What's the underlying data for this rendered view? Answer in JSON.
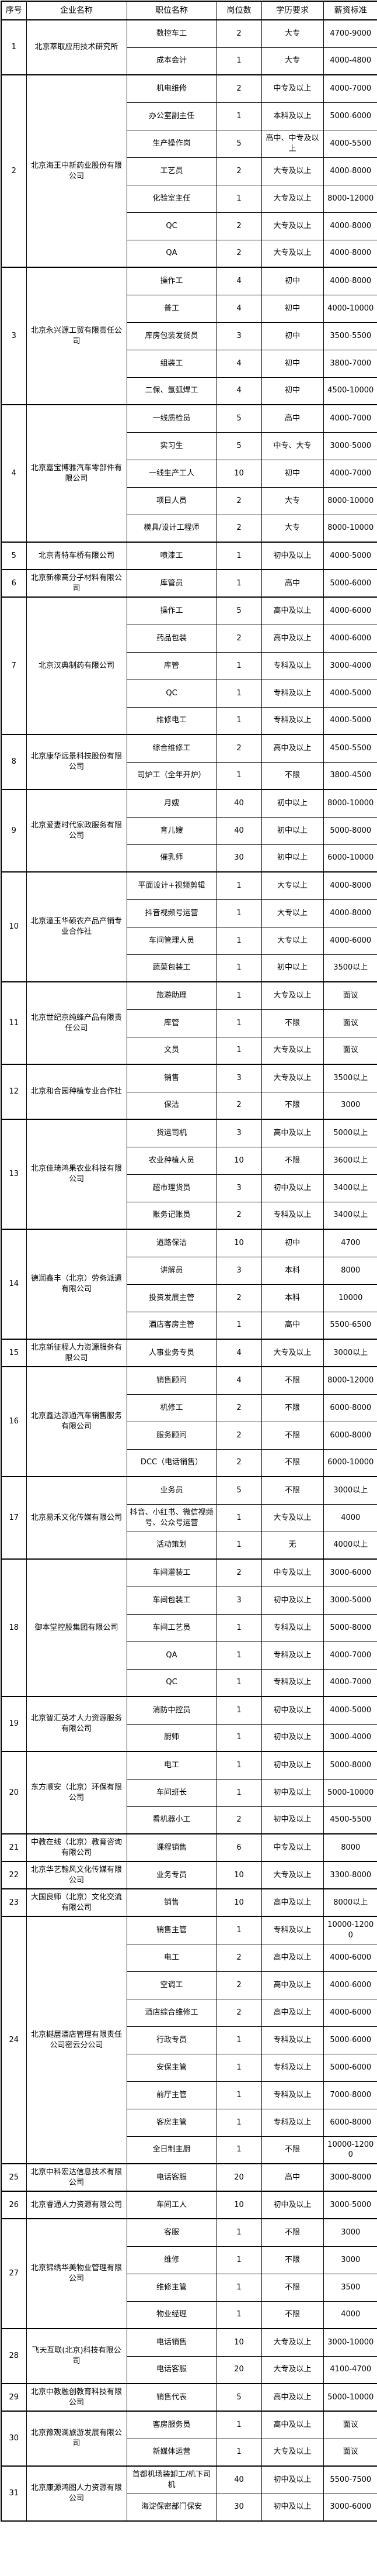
{
  "table": {
    "headers": [
      "序号",
      "企业名称",
      "职位名称",
      "岗位数",
      "学历要求",
      "薪资标准"
    ],
    "companies": [
      {
        "no": "1",
        "name": "北京萃取应用技术研究所",
        "positions": [
          {
            "title": "数控车工",
            "count": "2",
            "education": "大专",
            "salary": "4700-9000"
          },
          {
            "title": "成本会计",
            "count": "1",
            "education": "大专",
            "salary": "4000-4800"
          }
        ]
      },
      {
        "no": "2",
        "name": "北京海王中新药业股份有限公司",
        "positions": [
          {
            "title": "机电维修",
            "count": "2",
            "education": "中专及以上",
            "salary": "4000-7000"
          },
          {
            "title": "办公室副主任",
            "count": "1",
            "education": "本科及以上",
            "salary": "5000-6000"
          },
          {
            "title": "生产操作岗",
            "count": "5",
            "education": "高中、中专及以上",
            "salary": "4000-5500"
          },
          {
            "title": "工艺员",
            "count": "2",
            "education": "大专及以上",
            "salary": "4000-8000"
          },
          {
            "title": "化验室主任",
            "count": "1",
            "education": "大专及以上",
            "salary": "8000-12000"
          },
          {
            "title": "QC",
            "count": "2",
            "education": "大专及以上",
            "salary": "4000-8000"
          },
          {
            "title": "QA",
            "count": "2",
            "education": "大专及以上",
            "salary": "4000-8000"
          }
        ]
      },
      {
        "no": "3",
        "name": "北京永兴源工贸有限责任公司",
        "positions": [
          {
            "title": "操作工",
            "count": "4",
            "education": "初中",
            "salary": "4000-8000"
          },
          {
            "title": "普工",
            "count": "4",
            "education": "初中",
            "salary": "4000-10000"
          },
          {
            "title": "库房包装发货员",
            "count": "3",
            "education": "初中",
            "salary": "3500-5500"
          },
          {
            "title": "组装工",
            "count": "4",
            "education": "初中",
            "salary": "3800-7000"
          },
          {
            "title": "二保、氩弧焊工",
            "count": "4",
            "education": "初中",
            "salary": "4500-10000"
          }
        ]
      },
      {
        "no": "4",
        "name": "北京嘉宝博雅汽车零部件有限公司",
        "positions": [
          {
            "title": "一线质检员",
            "count": "5",
            "education": "高中",
            "salary": "4000-7000"
          },
          {
            "title": "实习生",
            "count": "5",
            "education": "中专、大专",
            "salary": "3000-5000"
          },
          {
            "title": "一线生产工人",
            "count": "10",
            "education": "初中",
            "salary": "4000-7000"
          },
          {
            "title": "项目人员",
            "count": "2",
            "education": "大专",
            "salary": "8000-10000"
          },
          {
            "title": "模具/设计工程师",
            "count": "2",
            "education": "大专",
            "salary": "8000-10000"
          }
        ]
      },
      {
        "no": "5",
        "name": "北京青特车桥有限公司",
        "positions": [
          {
            "title": "喷漆工",
            "count": "1",
            "education": "初中及以上",
            "salary": "4000-5000"
          }
        ]
      },
      {
        "no": "6",
        "name": "北京新橡高分子材料有限公司",
        "positions": [
          {
            "title": "库管员",
            "count": "1",
            "education": "高中",
            "salary": "5000-6000"
          }
        ]
      },
      {
        "no": "7",
        "name": "北京汉典制药有限公司",
        "positions": [
          {
            "title": "操作工",
            "count": "5",
            "education": "高中及以上",
            "salary": "4000-6000"
          },
          {
            "title": "药品包装",
            "count": "2",
            "education": "高中及以上",
            "salary": "4000-6000"
          },
          {
            "title": "库管",
            "count": "1",
            "education": "专科及以上",
            "salary": "3000-4000"
          },
          {
            "title": "QC",
            "count": "1",
            "education": "专科及以上",
            "salary": "4000-5000"
          },
          {
            "title": "维修电工",
            "count": "1",
            "education": "专科及以上",
            "salary": "4000-5000"
          }
        ]
      },
      {
        "no": "8",
        "name": "北京康华远景科技股份有限公司",
        "positions": [
          {
            "title": "综合维修工",
            "count": "2",
            "education": "高中及以上",
            "salary": "4500-5500"
          },
          {
            "title": "司炉工（全年开炉）",
            "count": "1",
            "education": "不限",
            "salary": "3800-4500"
          }
        ]
      },
      {
        "no": "9",
        "name": "北京爱妻时代家政服务有限公司",
        "positions": [
          {
            "title": "月嫂",
            "count": "40",
            "education": "初中以上",
            "salary": "8000-10000"
          },
          {
            "title": "育儿嫂",
            "count": "40",
            "education": "初中以上",
            "salary": "5000-8000"
          },
          {
            "title": "催乳师",
            "count": "30",
            "education": "初中以上",
            "salary": "6000-10000"
          }
        ]
      },
      {
        "no": "10",
        "name": "北京潼玉华硕农产品产销专业合作社",
        "positions": [
          {
            "title": "平面设计+视频剪辑",
            "count": "1",
            "education": "大专以上",
            "salary": "4000-8000"
          },
          {
            "title": "抖音视频号运营",
            "count": "1",
            "education": "大专以上",
            "salary": "4000-8000"
          },
          {
            "title": "车间管理人员",
            "count": "1",
            "education": "大专以上",
            "salary": "4000-6000"
          },
          {
            "title": "蔬菜包装工",
            "count": "1",
            "education": "初中以上",
            "salary": "3500以上"
          }
        ]
      },
      {
        "no": "11",
        "name": "北京世纪京纯蜂产品有限责任公司",
        "positions": [
          {
            "title": "旅游助理",
            "count": "1",
            "education": "大专及以上",
            "salary": "面议"
          },
          {
            "title": "库管",
            "count": "1",
            "education": "不限",
            "salary": "面议"
          },
          {
            "title": "文员",
            "count": "1",
            "education": "大专及以上",
            "salary": "面议"
          }
        ]
      },
      {
        "no": "12",
        "name": "北京和合园种植专业合作社",
        "positions": [
          {
            "title": "销售",
            "count": "3",
            "education": "大专及以上",
            "salary": "3500以上"
          },
          {
            "title": "保洁",
            "count": "2",
            "education": "不限",
            "salary": "3000"
          }
        ]
      },
      {
        "no": "13",
        "name": "北京佳琦鸿果农业科技有限公司",
        "positions": [
          {
            "title": "货运司机",
            "count": "3",
            "education": "高中及以上",
            "salary": "5000以上"
          },
          {
            "title": "农业种植人员",
            "count": "10",
            "education": "不限",
            "salary": "3600以上"
          },
          {
            "title": "超市理货员",
            "count": "3",
            "education": "初中及以上",
            "salary": "3400以上"
          },
          {
            "title": "账务记账员",
            "count": "2",
            "education": "专科及以上",
            "salary": "3400以上"
          }
        ]
      },
      {
        "no": "14",
        "name": "德润鑫丰（北京）劳务派遣有限公司",
        "positions": [
          {
            "title": "道路保洁",
            "count": "10",
            "education": "初中",
            "salary": "4700"
          },
          {
            "title": "讲解员",
            "count": "3",
            "education": "本科",
            "salary": "8000"
          },
          {
            "title": "投资发展主管",
            "count": "2",
            "education": "本科",
            "salary": "10000"
          },
          {
            "title": "酒店客房主管",
            "count": "1",
            "education": "高中",
            "salary": "5500-6500"
          }
        ]
      },
      {
        "no": "15",
        "name": "北京新征程人力资源服务有限公司",
        "positions": [
          {
            "title": "人事业务专员",
            "count": "4",
            "education": "大专及以上",
            "salary": "3000以上"
          }
        ]
      },
      {
        "no": "16",
        "name": "北京鑫达源通汽车销售服务有限公司",
        "positions": [
          {
            "title": "销售顾问",
            "count": "4",
            "education": "不限",
            "salary": "8000-12000"
          },
          {
            "title": "机修工",
            "count": "2",
            "education": "不限",
            "salary": "6000-8000"
          },
          {
            "title": "服务顾问",
            "count": "2",
            "education": "不限",
            "salary": "6000-8000"
          },
          {
            "title": "DCC（电话销售）",
            "count": "2",
            "education": "不限",
            "salary": "6000-10000"
          }
        ]
      },
      {
        "no": "17",
        "name": "北京易禾文化传媒有限公司",
        "positions": [
          {
            "title": "业务员",
            "count": "5",
            "education": "不限",
            "salary": "3000以上"
          },
          {
            "title": "抖音、小红书、微信视频号、公众号运营",
            "count": "1",
            "education": "大专及以上",
            "salary": "4000"
          },
          {
            "title": "活动策划",
            "count": "1",
            "education": "无",
            "salary": "4000以上"
          }
        ]
      },
      {
        "no": "18",
        "name": "御本堂控股集团有限公司",
        "positions": [
          {
            "title": "车间灌装工",
            "count": "2",
            "education": "中专及以上",
            "salary": "3000-6000"
          },
          {
            "title": "车间包装工",
            "count": "3",
            "education": "初中及以上",
            "salary": "3000-5000"
          },
          {
            "title": "车间工艺员",
            "count": "1",
            "education": "专科及以上",
            "salary": "5000-8000"
          },
          {
            "title": "QA",
            "count": "1",
            "education": "专科及以上",
            "salary": "4000-7000"
          },
          {
            "title": "QC",
            "count": "1",
            "education": "专科及以上",
            "salary": "4000-7000"
          }
        ]
      },
      {
        "no": "19",
        "name": "北京智汇英才人力资源服务有限公司",
        "positions": [
          {
            "title": "消防中控员",
            "count": "1",
            "education": "初中及以上",
            "salary": "4000-5000"
          },
          {
            "title": "厨师",
            "count": "1",
            "education": "初中及以上",
            "salary": "3000-4000"
          }
        ]
      },
      {
        "no": "20",
        "name": "东方顺安（北京）环保有限公司",
        "positions": [
          {
            "title": "电工",
            "count": "1",
            "education": "初中及以上",
            "salary": "5000-8000"
          },
          {
            "title": "车间班长",
            "count": "1",
            "education": "初中及以上",
            "salary": "5000-10000"
          },
          {
            "title": "看机器小工",
            "count": "2",
            "education": "初中及以上",
            "salary": "4500-5500"
          }
        ]
      },
      {
        "no": "21",
        "name": "中教在线（北京）教育咨询有限公司",
        "positions": [
          {
            "title": "课程销售",
            "count": "6",
            "education": "中专及以上",
            "salary": "8000"
          }
        ]
      },
      {
        "no": "22",
        "name": "北京华艺翰风文化传媒有限公司",
        "positions": [
          {
            "title": "业务专员",
            "count": "10",
            "education": "大专及以上",
            "salary": "3300-8000"
          }
        ]
      },
      {
        "no": "23",
        "name": "大国良师（北京）文化交流有限公司",
        "positions": [
          {
            "title": "销售",
            "count": "10",
            "education": "高中及以上",
            "salary": "8000以上"
          }
        ]
      },
      {
        "no": "24",
        "name": "北京樾居酒店管理有限责任公司密云分公司",
        "positions": [
          {
            "title": "销售主管",
            "count": "1",
            "education": "专科及以上",
            "salary": "10000-12000"
          },
          {
            "title": "电工",
            "count": "2",
            "education": "高中及以上",
            "salary": "4000-6000"
          },
          {
            "title": "空调工",
            "count": "2",
            "education": "高中及以上",
            "salary": "4000-6000"
          },
          {
            "title": "酒店综合维修工",
            "count": "2",
            "education": "高中及以上",
            "salary": "4000-6000"
          },
          {
            "title": "行政专员",
            "count": "1",
            "education": "专科及以上",
            "salary": "5000-6000"
          },
          {
            "title": "安保主管",
            "count": "1",
            "education": "专科及以上",
            "salary": "5000-6000"
          },
          {
            "title": "前厅主管",
            "count": "1",
            "education": "专科及以上",
            "salary": "7000-8000"
          },
          {
            "title": "客房主管",
            "count": "1",
            "education": "专科及以上",
            "salary": "6000-8000"
          },
          {
            "title": "全日制主厨",
            "count": "1",
            "education": "不限",
            "salary": "10000-12000"
          }
        ]
      },
      {
        "no": "25",
        "name": "北京中科宏达信息技术有限公司",
        "positions": [
          {
            "title": "电话客服",
            "count": "20",
            "education": "高中",
            "salary": "3000-8000"
          }
        ]
      },
      {
        "no": "26",
        "name": "北京睿通人力资源有限公司",
        "positions": [
          {
            "title": "车间工人",
            "count": "10",
            "education": "初中及以上",
            "salary": "3000-5000"
          }
        ]
      },
      {
        "no": "27",
        "name": "北京锦绣华美物业管理有限公司",
        "positions": [
          {
            "title": "客服",
            "count": "1",
            "education": "不限",
            "salary": "3000"
          },
          {
            "title": "维修",
            "count": "1",
            "education": "不限",
            "salary": "3000"
          },
          {
            "title": "维修主管",
            "count": "1",
            "education": "不限",
            "salary": "3500"
          },
          {
            "title": "物业经理",
            "count": "1",
            "education": "不限",
            "salary": "4000"
          }
        ]
      },
      {
        "no": "28",
        "name": "飞天互联(北京)科技有限公司",
        "positions": [
          {
            "title": "电话销售",
            "count": "10",
            "education": "大专及以上",
            "salary": "3000-10000"
          },
          {
            "title": "电话客服",
            "count": "20",
            "education": "大专及以上",
            "salary": "4100-4700"
          }
        ]
      },
      {
        "no": "29",
        "name": "北京中教融创教育科技有限公司",
        "positions": [
          {
            "title": "销售代表",
            "count": "5",
            "education": "高中及以上",
            "salary": "5000-10000"
          }
        ]
      },
      {
        "no": "30",
        "name": "北京豫观澜旅游发展有限公司",
        "positions": [
          {
            "title": "客房服务员",
            "count": "1",
            "education": "高中及以上",
            "salary": "面议"
          },
          {
            "title": "新媒体运营",
            "count": "1",
            "education": "大专及以上",
            "salary": "面议"
          }
        ]
      },
      {
        "no": "31",
        "name": "北京康源鸿图人力资源有限公司",
        "positions": [
          {
            "title": "首都机场装卸工/机下司机",
            "count": "40",
            "education": "初中及以上",
            "salary": "5500-7500"
          },
          {
            "title": "海淀保密部门保安",
            "count": "30",
            "education": "初中及以上",
            "salary": "3000-6000"
          }
        ]
      }
    ]
  }
}
